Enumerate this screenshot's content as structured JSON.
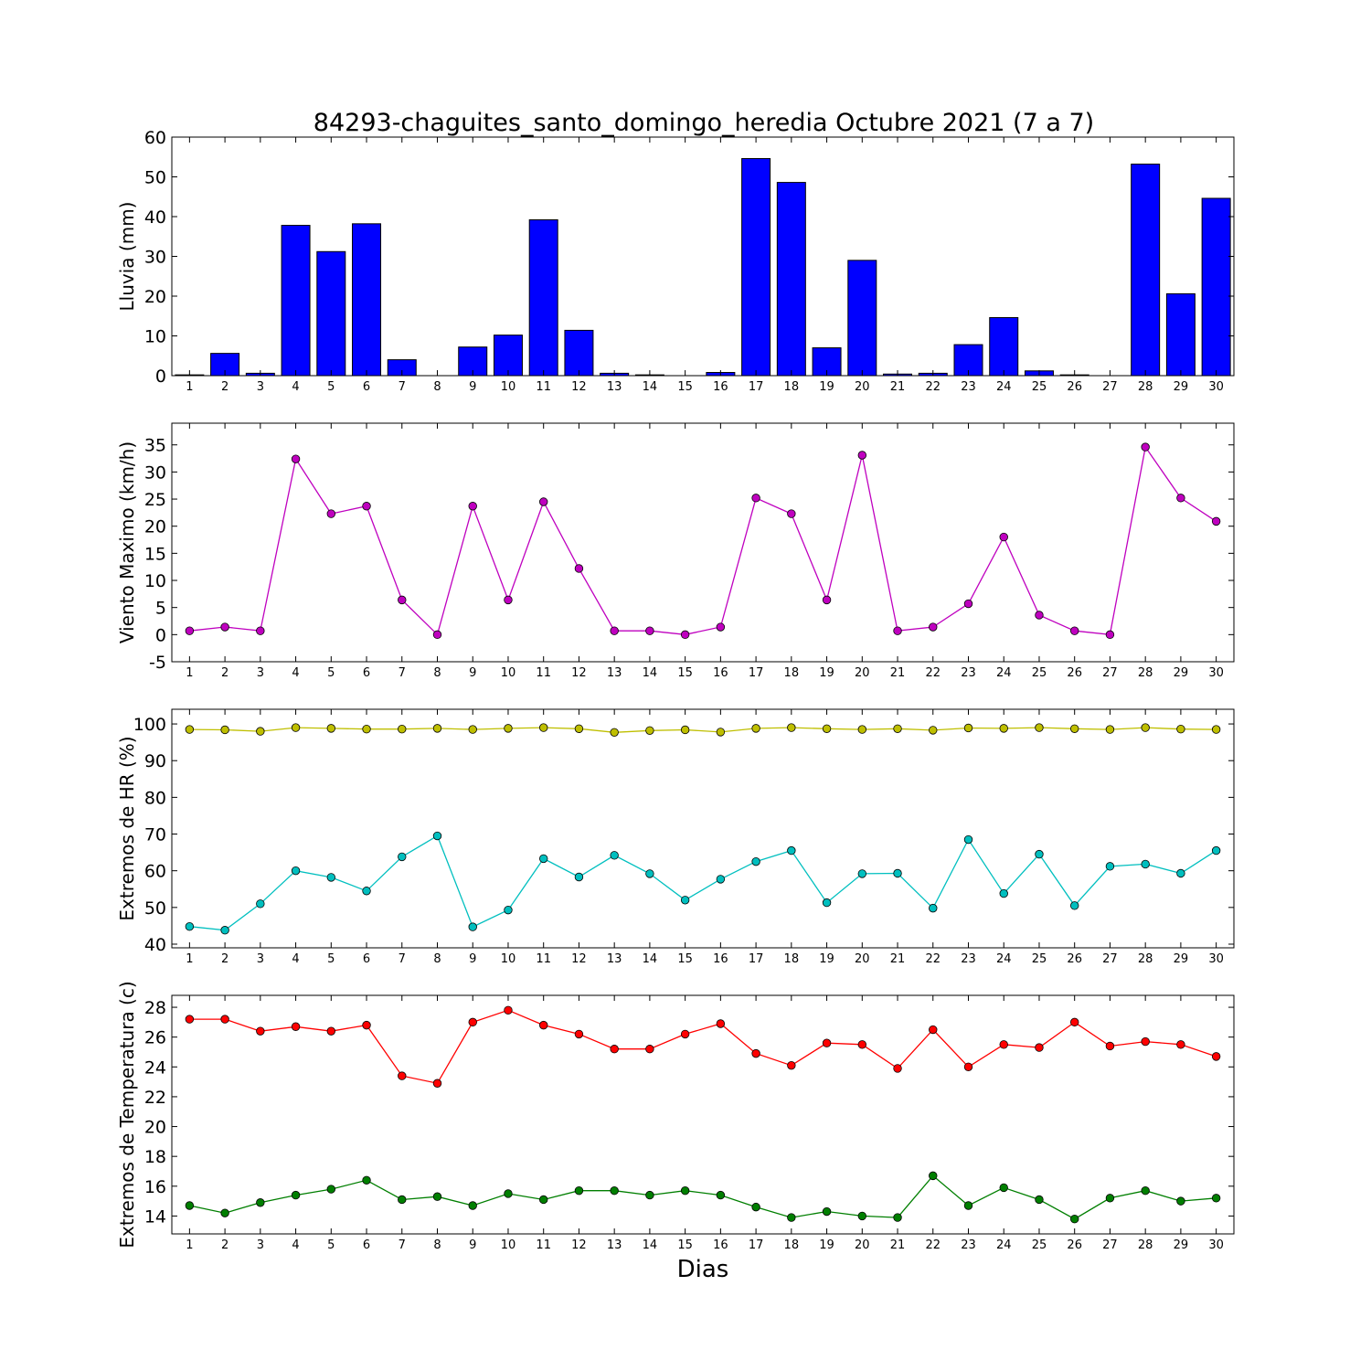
{
  "figure": {
    "title": "84293-chaguites_santo_domingo_heredia Octubre 2021  (7 a 7)",
    "xlabel": "Dias"
  },
  "chart_data": [
    {
      "type": "bar",
      "ylabel": "Lluvia (mm)",
      "ylim": [
        0,
        60
      ],
      "yticks": [
        0,
        10,
        20,
        30,
        40,
        50,
        60
      ],
      "xlim": [
        0.5,
        30.5
      ],
      "categories": [
        1,
        2,
        3,
        4,
        5,
        6,
        7,
        8,
        9,
        10,
        11,
        12,
        13,
        14,
        15,
        16,
        17,
        18,
        19,
        20,
        21,
        22,
        23,
        24,
        25,
        26,
        27,
        28,
        29,
        30
      ],
      "series": [
        {
          "color": "#0000ff",
          "values": [
            0.2,
            5.6,
            0.6,
            37.8,
            31.2,
            38.2,
            4.0,
            0,
            7.2,
            10.2,
            39.2,
            11.4,
            0.6,
            0.2,
            0,
            0.8,
            54.6,
            48.6,
            7.0,
            29.0,
            0.4,
            0.6,
            7.8,
            14.6,
            1.2,
            0.2,
            0,
            53.2,
            20.6,
            44.6
          ]
        }
      ]
    },
    {
      "type": "line",
      "ylabel": "Viento Maximo (km/h)",
      "ylim": [
        -5,
        39
      ],
      "yticks": [
        -5,
        0,
        5,
        10,
        15,
        20,
        25,
        30,
        35
      ],
      "xlim": [
        0.5,
        30.5
      ],
      "x": [
        1,
        2,
        3,
        4,
        5,
        6,
        7,
        8,
        9,
        10,
        11,
        12,
        13,
        14,
        15,
        16,
        17,
        18,
        19,
        20,
        21,
        22,
        23,
        24,
        25,
        26,
        27,
        28,
        29,
        30
      ],
      "series": [
        {
          "color": "#bf00bf",
          "values": [
            0.7,
            1.4,
            0.7,
            32.4,
            22.3,
            23.7,
            6.4,
            0,
            23.7,
            6.4,
            24.5,
            12.2,
            0.7,
            0.7,
            0,
            1.4,
            25.2,
            22.3,
            6.4,
            33.1,
            0.7,
            1.4,
            5.7,
            18.0,
            3.6,
            0.7,
            0,
            34.6,
            25.2,
            20.9
          ]
        }
      ]
    },
    {
      "type": "line",
      "ylabel": "Extremos de HR (%)",
      "ylim": [
        39,
        104
      ],
      "yticks": [
        40,
        50,
        60,
        70,
        80,
        90,
        100
      ],
      "xlim": [
        0.5,
        30.5
      ],
      "x": [
        1,
        2,
        3,
        4,
        5,
        6,
        7,
        8,
        9,
        10,
        11,
        12,
        13,
        14,
        15,
        16,
        17,
        18,
        19,
        20,
        21,
        22,
        23,
        24,
        25,
        26,
        27,
        28,
        29,
        30
      ],
      "series": [
        {
          "color": "#bfbf00",
          "values": [
            98.5,
            98.4,
            98.0,
            99.0,
            98.8,
            98.6,
            98.6,
            98.8,
            98.5,
            98.8,
            99.0,
            98.7,
            97.7,
            98.2,
            98.4,
            97.8,
            98.8,
            99.0,
            98.7,
            98.5,
            98.7,
            98.3,
            98.9,
            98.8,
            99.0,
            98.7,
            98.5,
            99.0,
            98.6,
            98.5
          ]
        },
        {
          "color": "#00bfbf",
          "values": [
            44.8,
            43.8,
            51.0,
            60.0,
            58.2,
            54.5,
            63.8,
            69.5,
            44.7,
            49.3,
            63.3,
            58.3,
            64.2,
            59.2,
            52.0,
            57.7,
            62.5,
            65.5,
            51.3,
            59.2,
            59.3,
            49.8,
            68.5,
            53.8,
            64.5,
            50.5,
            61.2,
            61.8,
            59.3,
            65.5
          ]
        }
      ]
    },
    {
      "type": "line",
      "ylabel": "Extremos de Temperatura (c)",
      "ylim": [
        12.8,
        28.8
      ],
      "yticks": [
        14,
        16,
        18,
        20,
        22,
        24,
        26,
        28
      ],
      "xlim": [
        0.5,
        30.5
      ],
      "x": [
        1,
        2,
        3,
        4,
        5,
        6,
        7,
        8,
        9,
        10,
        11,
        12,
        13,
        14,
        15,
        16,
        17,
        18,
        19,
        20,
        21,
        22,
        23,
        24,
        25,
        26,
        27,
        28,
        29,
        30
      ],
      "series": [
        {
          "color": "#ff0000",
          "values": [
            27.2,
            27.2,
            26.4,
            26.7,
            26.4,
            26.8,
            23.4,
            22.9,
            27.0,
            27.8,
            26.8,
            26.2,
            25.2,
            25.2,
            26.2,
            26.9,
            24.9,
            24.1,
            25.6,
            25.5,
            23.9,
            26.5,
            24.0,
            25.5,
            25.3,
            27.0,
            25.4,
            25.7,
            25.5,
            24.7
          ]
        },
        {
          "color": "#007f00",
          "values": [
            14.7,
            14.2,
            14.9,
            15.4,
            15.8,
            16.4,
            15.1,
            15.3,
            14.7,
            15.5,
            15.1,
            15.7,
            15.7,
            15.4,
            15.7,
            15.4,
            14.6,
            13.9,
            14.3,
            14.0,
            13.9,
            16.7,
            14.7,
            15.9,
            15.1,
            13.8,
            15.2,
            15.7,
            15.0,
            15.2
          ]
        }
      ]
    }
  ]
}
